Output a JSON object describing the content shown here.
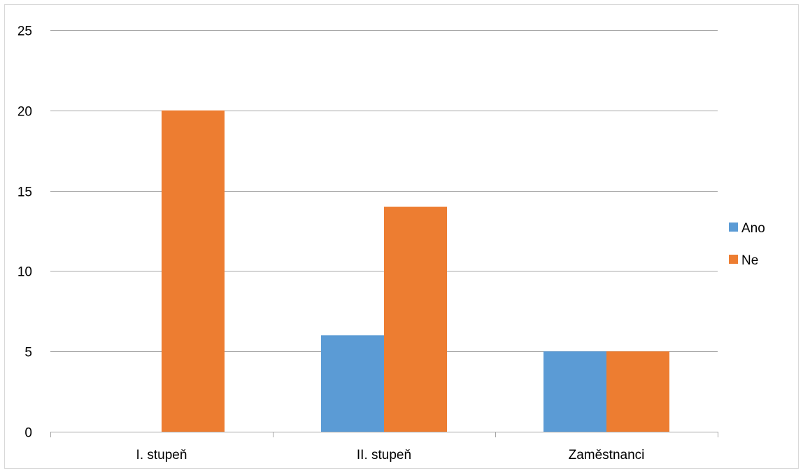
{
  "chart_data": {
    "type": "bar",
    "title": "",
    "xlabel": "",
    "ylabel": "",
    "categories": [
      "I. stupeň",
      "II. stupeň",
      "Zaměstnanci"
    ],
    "series": [
      {
        "name": "Ano",
        "values": [
          0,
          6,
          5
        ],
        "color": "#5B9BD5"
      },
      {
        "name": "Ne",
        "values": [
          20,
          14,
          5
        ],
        "color": "#ED7D31"
      }
    ],
    "ylim": [
      0,
      25
    ],
    "yticks": [
      0,
      5,
      10,
      15,
      20,
      25
    ],
    "grid": true,
    "legend_position": "right"
  }
}
